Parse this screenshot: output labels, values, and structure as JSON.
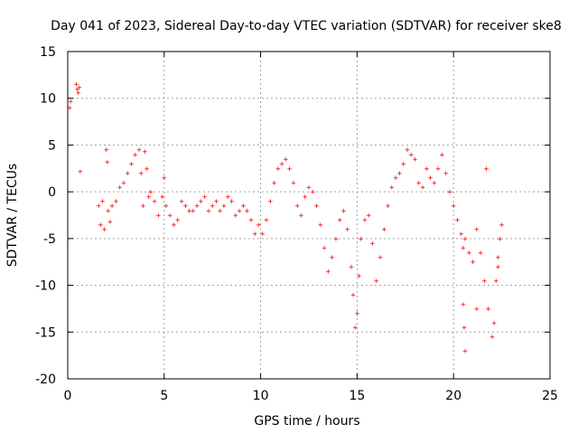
{
  "chart_data": {
    "type": "scatter",
    "title": "Day 041 of 2023, Sidereal Day-to-day VTEC variation (SDTVAR) for receiver ske8",
    "xlabel": "GPS time / hours",
    "ylabel": "SDTVAR / TECUs",
    "xlim": [
      0,
      25
    ],
    "ylim": [
      -20,
      15
    ],
    "xticks": [
      0,
      5,
      10,
      15,
      20,
      25
    ],
    "yticks": [
      -20,
      -15,
      -10,
      -5,
      0,
      5,
      10,
      15
    ],
    "xtick_labels": [
      "0",
      "5",
      "10",
      "15",
      "20",
      "25"
    ],
    "ytick_labels": [
      "-20",
      "-15",
      "-10",
      "-5",
      "0",
      "5",
      "10",
      "15"
    ],
    "grid": true,
    "marker": "+",
    "color": "#ff0000",
    "series": [
      {
        "name": "SDTVAR",
        "x": [
          0.1,
          0.15,
          0.45,
          0.5,
          0.55,
          0.6,
          0.65,
          1.6,
          1.7,
          1.8,
          1.9,
          2.0,
          2.05,
          2.1,
          2.2,
          2.3,
          2.5,
          2.7,
          2.9,
          3.1,
          3.3,
          3.5,
          3.7,
          3.8,
          3.9,
          4.0,
          4.1,
          4.2,
          4.3,
          4.5,
          4.7,
          4.9,
          5.0,
          5.1,
          5.3,
          5.5,
          5.7,
          5.9,
          6.1,
          6.3,
          6.5,
          6.7,
          6.9,
          7.1,
          7.3,
          7.5,
          7.7,
          7.9,
          8.1,
          8.3,
          8.5,
          8.7,
          8.9,
          9.1,
          9.3,
          9.5,
          9.7,
          9.9,
          10.1,
          10.3,
          10.5,
          10.7,
          10.9,
          11.1,
          11.3,
          11.5,
          11.7,
          11.9,
          12.1,
          12.3,
          12.5,
          12.7,
          12.9,
          13.1,
          13.3,
          13.5,
          13.7,
          13.9,
          14.1,
          14.3,
          14.5,
          14.7,
          14.8,
          14.9,
          15.0,
          15.1,
          15.2,
          15.4,
          15.6,
          15.8,
          16.0,
          16.2,
          16.4,
          16.6,
          16.8,
          17.0,
          17.2,
          17.4,
          17.6,
          17.8,
          18.0,
          18.2,
          18.4,
          18.6,
          18.8,
          19.0,
          19.2,
          19.4,
          19.6,
          19.8,
          20.0,
          20.2,
          20.4,
          20.5,
          20.6,
          20.8,
          21.0,
          21.2,
          21.4,
          21.6,
          21.8,
          22.0,
          22.1,
          22.2,
          22.3,
          22.4,
          22.5,
          20.5,
          20.55,
          20.6,
          21.2,
          21.7,
          22.3
        ],
        "y": [
          9.0,
          9.7,
          11.5,
          11.0,
          10.6,
          11.2,
          2.2,
          -1.5,
          -3.5,
          -1.0,
          -4.0,
          4.5,
          3.2,
          -2.0,
          -3.2,
          -1.5,
          -1.0,
          0.5,
          1.0,
          2.0,
          3.0,
          4.0,
          4.5,
          2.0,
          -1.5,
          4.3,
          2.5,
          -0.5,
          0.0,
          -1.0,
          -2.5,
          -0.5,
          1.5,
          -1.5,
          -2.5,
          -3.5,
          -3.0,
          -1.0,
          -1.5,
          -2.0,
          -2.0,
          -1.5,
          -1.0,
          -0.5,
          -2.0,
          -1.5,
          -1.0,
          -2.0,
          -1.5,
          -0.5,
          -1.0,
          -2.5,
          -2.0,
          -1.5,
          -2.0,
          -3.0,
          -4.5,
          -3.5,
          -4.5,
          -3.0,
          -1.0,
          1.0,
          2.5,
          3.0,
          3.5,
          2.5,
          1.0,
          -1.5,
          -2.5,
          -0.5,
          0.5,
          0.0,
          -1.5,
          -3.5,
          -6.0,
          -8.5,
          -7.0,
          -5.0,
          -3.0,
          -2.0,
          -4.0,
          -8.0,
          -11.0,
          -14.5,
          -13.0,
          -9.0,
          -5.0,
          -3.0,
          -2.5,
          -5.5,
          -9.5,
          -7.0,
          -4.0,
          -1.5,
          0.5,
          1.5,
          2.0,
          3.0,
          4.5,
          4.0,
          3.5,
          1.0,
          0.5,
          2.5,
          1.5,
          1.0,
          2.5,
          4.0,
          2.0,
          0.0,
          -1.5,
          -3.0,
          -4.5,
          -6.0,
          -5.0,
          -6.5,
          -7.5,
          -4.0,
          -6.5,
          -9.5,
          -12.5,
          -15.5,
          -14.0,
          -9.5,
          -7.0,
          -5.0,
          -3.5,
          -12.0,
          -14.5,
          -17.0,
          -12.5,
          2.5,
          -8.0
        ]
      }
    ]
  }
}
